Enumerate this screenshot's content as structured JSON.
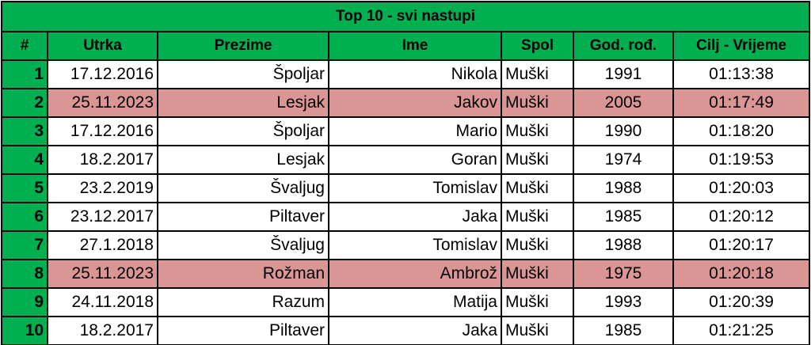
{
  "table": {
    "title": "Top 10 - svi nastupi",
    "headers": [
      "#",
      "Utrka",
      "Prezime",
      "Ime",
      "Spol",
      "God. rođ.",
      "Cilj - Vrijeme"
    ],
    "header_color": "#00b050",
    "highlight_color": "#da9694",
    "rows": [
      {
        "cells": [
          "1",
          "17.12.2016",
          "Špoljar",
          "Nikola",
          "Muški",
          "1991",
          "01:13:38"
        ],
        "highlight": false
      },
      {
        "cells": [
          "2",
          "25.11.2023",
          "Lesjak",
          "Jakov",
          "Muški",
          "2005",
          "01:17:49"
        ],
        "highlight": true
      },
      {
        "cells": [
          "3",
          "17.12.2016",
          "Špoljar",
          "Mario",
          "Muški",
          "1990",
          "01:18:20"
        ],
        "highlight": false
      },
      {
        "cells": [
          "4",
          "18.2.2017",
          "Lesjak",
          "Goran",
          "Muški",
          "1974",
          "01:19:53"
        ],
        "highlight": false
      },
      {
        "cells": [
          "5",
          "23.2.2019",
          "Švaljug",
          "Tomislav",
          "Muški",
          "1988",
          "01:20:03"
        ],
        "highlight": false
      },
      {
        "cells": [
          "6",
          "23.12.2017",
          "Piltaver",
          "Jaka",
          "Muški",
          "1985",
          "01:20:12"
        ],
        "highlight": false
      },
      {
        "cells": [
          "7",
          "27.1.2018",
          "Švaljug",
          "Tomislav",
          "Muški",
          "1988",
          "01:20:17"
        ],
        "highlight": false
      },
      {
        "cells": [
          "8",
          "25.11.2023",
          "Rožman",
          "Ambrož",
          "Muški",
          "1975",
          "01:20:18"
        ],
        "highlight": true
      },
      {
        "cells": [
          "9",
          "24.11.2018",
          "Razum",
          "Matija",
          "Muški",
          "1993",
          "01:20:39"
        ],
        "highlight": false
      },
      {
        "cells": [
          "10",
          "18.2.2017",
          "Piltaver",
          "Jaka",
          "Muški",
          "1985",
          "01:21:25"
        ],
        "highlight": false
      }
    ]
  }
}
